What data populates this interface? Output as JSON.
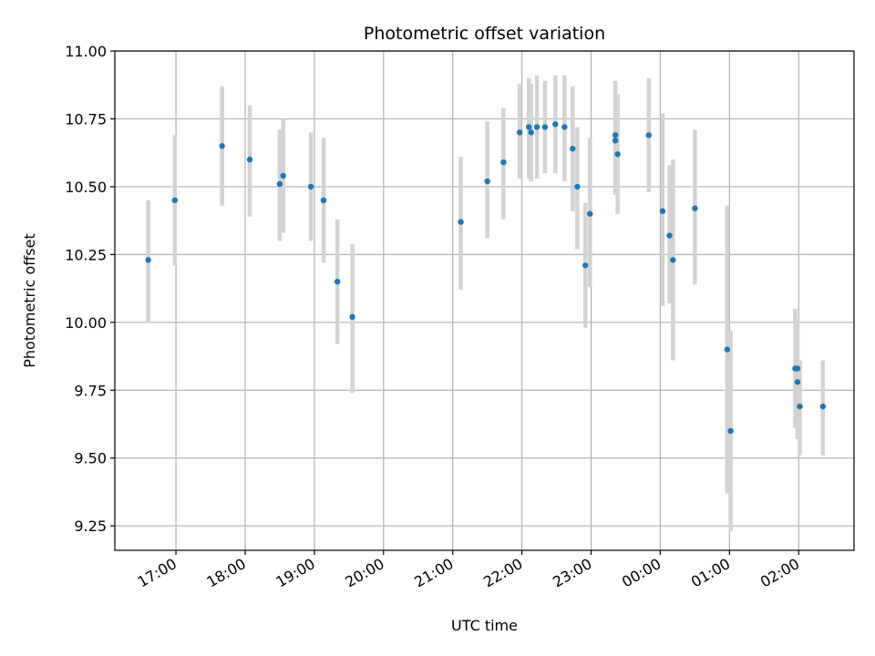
{
  "chart_data": {
    "type": "scatter",
    "title": "Photometric offset variation",
    "xlabel": "UTC time",
    "ylabel": "Photometric offset",
    "x_axis": "time",
    "x_start": "16:07",
    "x_end": "02:48",
    "x_tick_labels": [
      "17:00",
      "18:00",
      "19:00",
      "20:00",
      "21:00",
      "22:00",
      "23:00",
      "00:00",
      "01:00",
      "02:00"
    ],
    "ylim": [
      9.16,
      11.0
    ],
    "y_ticks": [
      9.25,
      9.5,
      9.75,
      10.0,
      10.25,
      10.5,
      10.75,
      11.0
    ],
    "y_tick_labels": [
      "9.25",
      "9.50",
      "9.75",
      "10.00",
      "10.25",
      "10.50",
      "10.75",
      "11.00"
    ],
    "grid": true,
    "marker_color": "#1f77b4",
    "errorbar_color": "#d3d3d3",
    "points": [
      {
        "t": "16:36",
        "y": 10.23,
        "lo": 10.0,
        "hi": 10.45
      },
      {
        "t": "16:59",
        "y": 10.45,
        "lo": 10.21,
        "hi": 10.69
      },
      {
        "t": "17:40",
        "y": 10.65,
        "lo": 10.43,
        "hi": 10.87
      },
      {
        "t": "18:04",
        "y": 10.6,
        "lo": 10.39,
        "hi": 10.8
      },
      {
        "t": "18:30",
        "y": 10.51,
        "lo": 10.3,
        "hi": 10.71
      },
      {
        "t": "18:33",
        "y": 10.54,
        "lo": 10.33,
        "hi": 10.75
      },
      {
        "t": "18:57",
        "y": 10.5,
        "lo": 10.3,
        "hi": 10.7
      },
      {
        "t": "19:08",
        "y": 10.45,
        "lo": 10.22,
        "hi": 10.68
      },
      {
        "t": "19:20",
        "y": 10.15,
        "lo": 9.92,
        "hi": 10.38
      },
      {
        "t": "19:33",
        "y": 10.02,
        "lo": 9.74,
        "hi": 10.29
      },
      {
        "t": "21:07",
        "y": 10.37,
        "lo": 10.12,
        "hi": 10.61
      },
      {
        "t": "21:30",
        "y": 10.52,
        "lo": 10.31,
        "hi": 10.74
      },
      {
        "t": "21:44",
        "y": 10.59,
        "lo": 10.38,
        "hi": 10.79
      },
      {
        "t": "21:58",
        "y": 10.7,
        "lo": 10.53,
        "hi": 10.88
      },
      {
        "t": "22:06",
        "y": 10.72,
        "lo": 10.53,
        "hi": 10.9
      },
      {
        "t": "22:08",
        "y": 10.7,
        "lo": 10.52,
        "hi": 10.88
      },
      {
        "t": "22:13",
        "y": 10.72,
        "lo": 10.53,
        "hi": 10.91
      },
      {
        "t": "22:20",
        "y": 10.72,
        "lo": 10.55,
        "hi": 10.89
      },
      {
        "t": "22:29",
        "y": 10.73,
        "lo": 10.55,
        "hi": 10.91
      },
      {
        "t": "22:37",
        "y": 10.72,
        "lo": 10.52,
        "hi": 10.91
      },
      {
        "t": "22:44",
        "y": 10.64,
        "lo": 10.41,
        "hi": 10.87
      },
      {
        "t": "22:48",
        "y": 10.5,
        "lo": 10.27,
        "hi": 10.72
      },
      {
        "t": "22:55",
        "y": 10.21,
        "lo": 9.98,
        "hi": 10.44
      },
      {
        "t": "22:59",
        "y": 10.4,
        "lo": 10.13,
        "hi": 10.68
      },
      {
        "t": "23:21",
        "y": 10.69,
        "lo": 10.48,
        "hi": 10.89
      },
      {
        "t": "23:21",
        "y": 10.67,
        "lo": 10.47,
        "hi": 10.87
      },
      {
        "t": "23:23",
        "y": 10.62,
        "lo": 10.4,
        "hi": 10.84
      },
      {
        "t": "23:50",
        "y": 10.69,
        "lo": 10.48,
        "hi": 10.9
      },
      {
        "t": "00:02",
        "y": 10.41,
        "lo": 10.06,
        "hi": 10.77
      },
      {
        "t": "00:08",
        "y": 10.32,
        "lo": 10.07,
        "hi": 10.58
      },
      {
        "t": "00:11",
        "y": 10.23,
        "lo": 9.86,
        "hi": 10.6
      },
      {
        "t": "00:30",
        "y": 10.42,
        "lo": 10.14,
        "hi": 10.71
      },
      {
        "t": "00:58",
        "y": 9.9,
        "lo": 9.37,
        "hi": 10.43
      },
      {
        "t": "01:01",
        "y": 9.6,
        "lo": 9.23,
        "hi": 9.97
      },
      {
        "t": "01:57",
        "y": 9.83,
        "lo": 9.61,
        "hi": 10.05
      },
      {
        "t": "01:59",
        "y": 9.83,
        "lo": 9.58,
        "hi": 10.01
      },
      {
        "t": "01:59",
        "y": 9.78,
        "lo": 9.57,
        "hi": 9.99
      },
      {
        "t": "02:01",
        "y": 9.69,
        "lo": 9.51,
        "hi": 9.86
      },
      {
        "t": "02:21",
        "y": 9.69,
        "lo": 9.51,
        "hi": 9.86
      }
    ]
  }
}
